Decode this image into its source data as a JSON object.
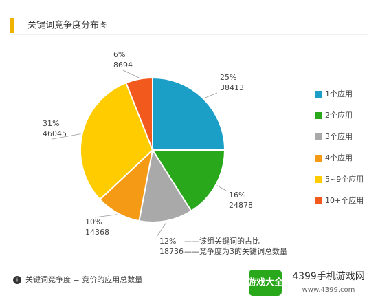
{
  "chart_data": {
    "type": "pie",
    "title": "关键词竞争度分布图",
    "categories": [
      "1个应用",
      "2个应用",
      "3个应用",
      "4个应用",
      "5~9个应用",
      "10+个应用"
    ],
    "values": [
      25,
      16,
      12,
      10,
      31,
      6
    ],
    "value_labels": [
      "25%",
      "16%",
      "12%",
      "10%",
      "31%",
      "6%"
    ],
    "counts": [
      38413,
      24878,
      18736,
      14368,
      46045,
      8694
    ],
    "colors": [
      "#1b9fc7",
      "#2aa81b",
      "#a9a9a9",
      "#f59a14",
      "#ffcc00",
      "#f25a1d"
    ],
    "annotations": [
      "——该组关键词的占比",
      "——竞争度为3的关键词总数量"
    ],
    "footnote": "关键词竞争度 = 竞价的应用总数量",
    "legend_position": "right"
  },
  "watermark": {
    "badge": "游戏大全",
    "site": "4399手机游戏网",
    "url": "www.4399.com"
  }
}
